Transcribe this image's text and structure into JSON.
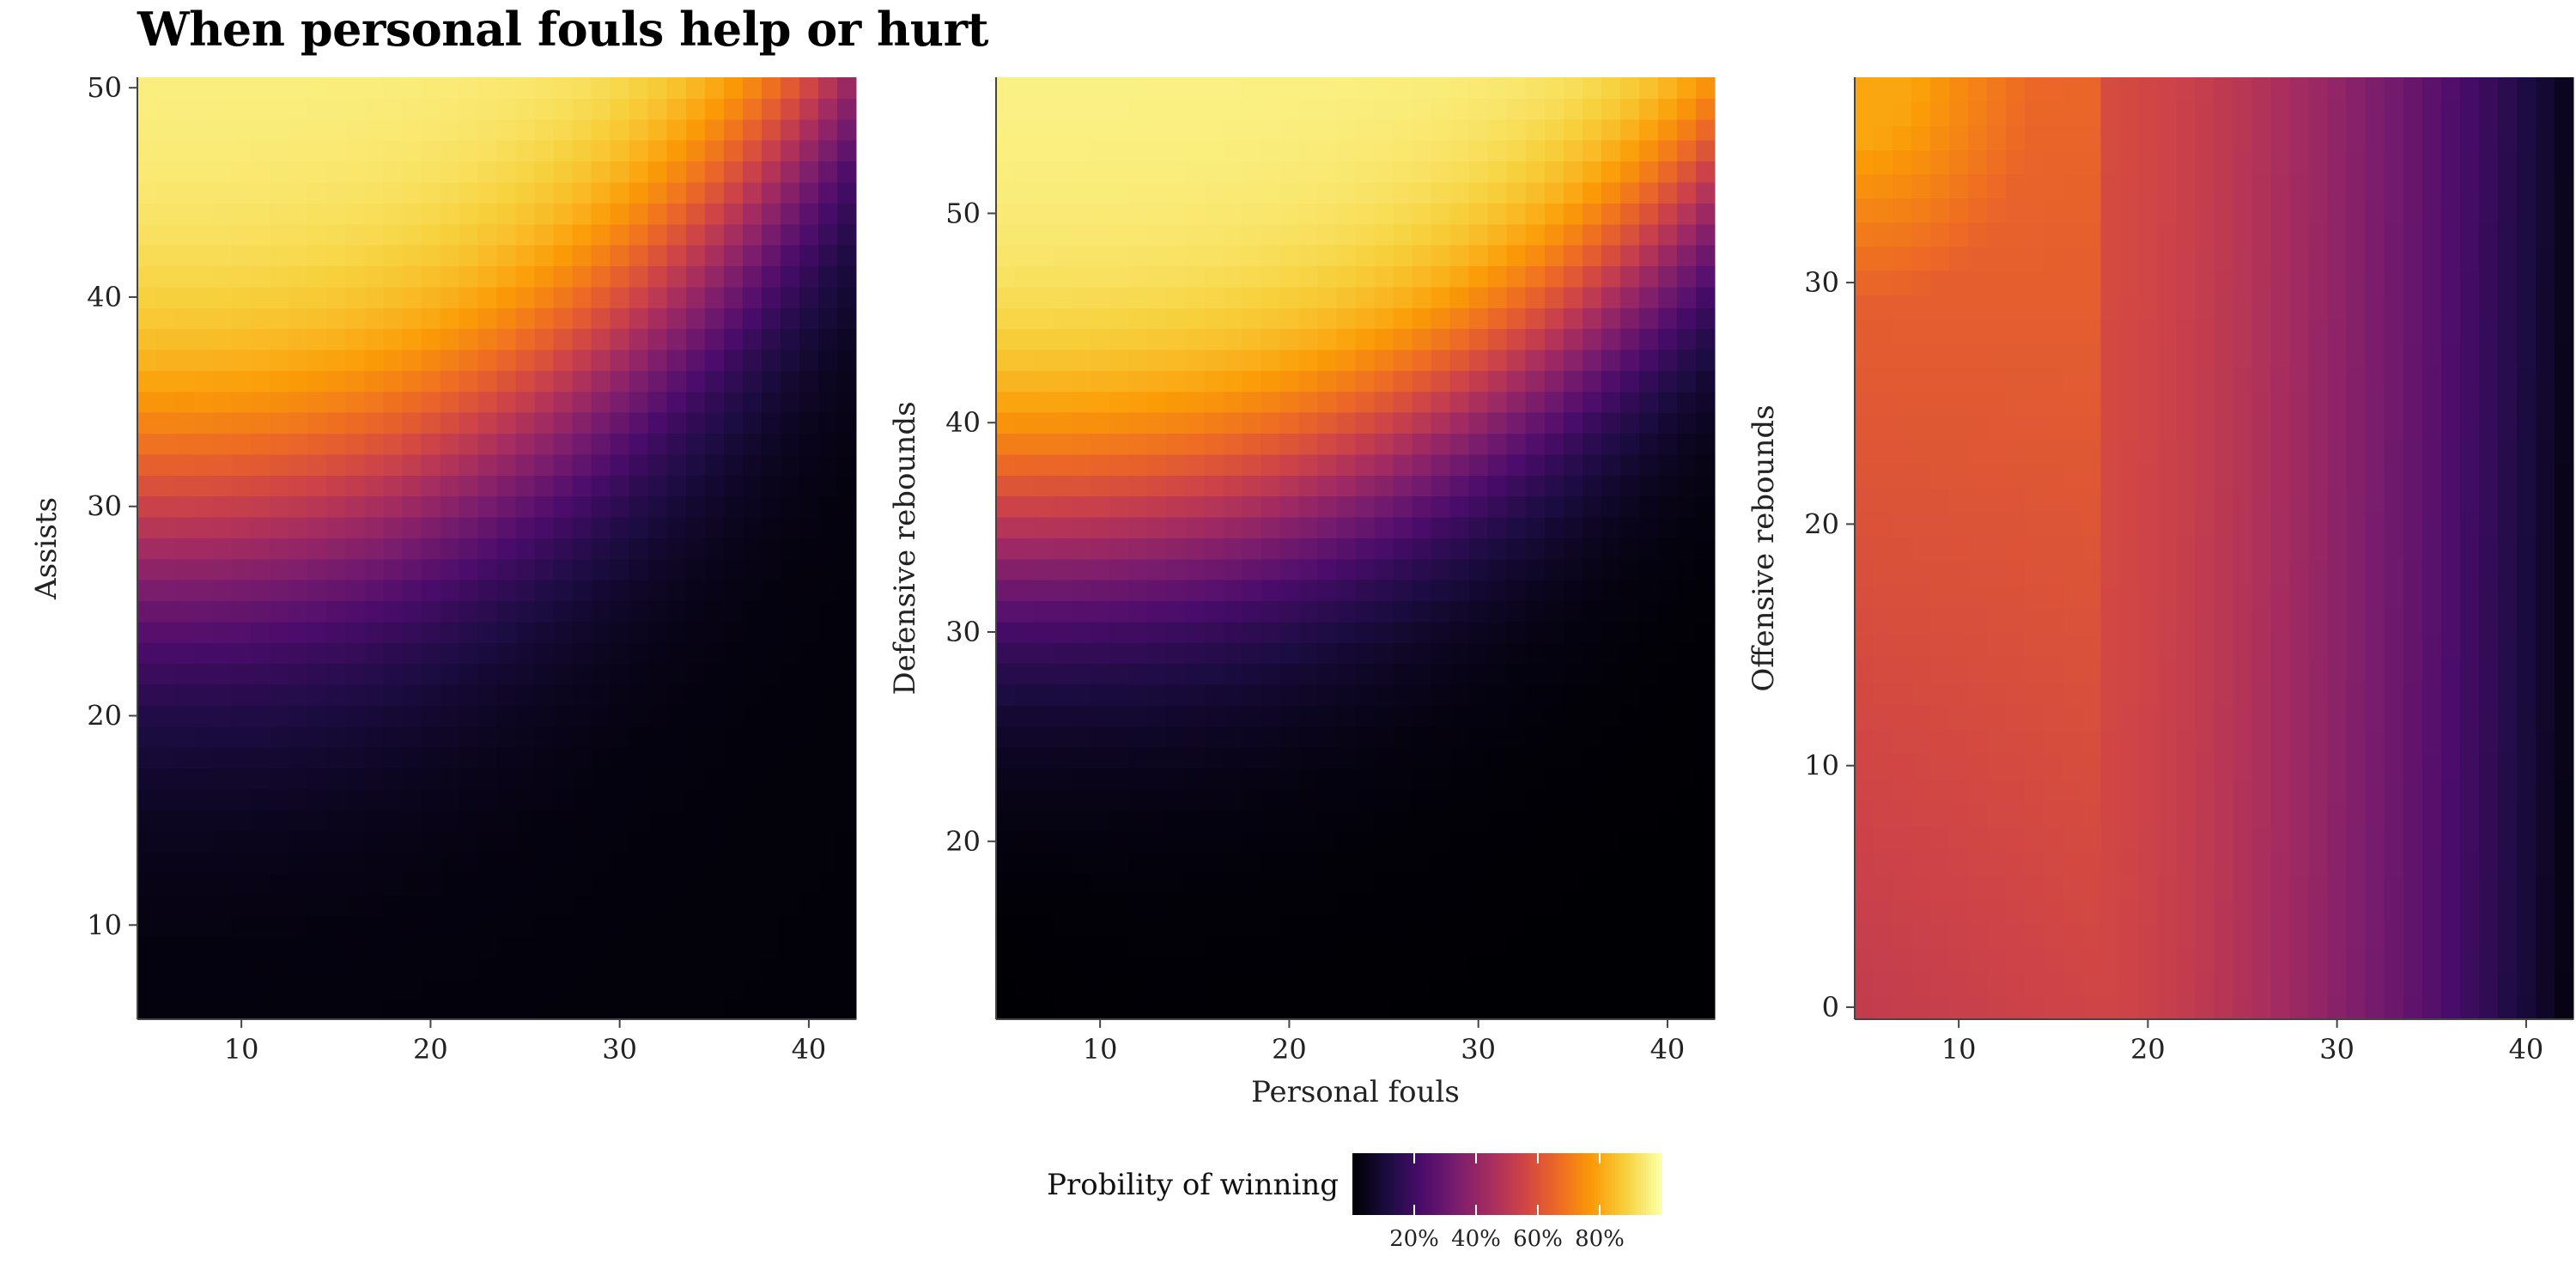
{
  "title": "When personal fouls help or hurt",
  "colorscale": {
    "name": "inferno",
    "stops": [
      "#000004",
      "#1b0c41",
      "#4a0c6b",
      "#781c6d",
      "#a52c60",
      "#cf4446",
      "#ed6925",
      "#fb9b06",
      "#f7d13d",
      "#fcffa4"
    ]
  },
  "chart_data": [
    {
      "type": "heatmap",
      "panel": "assists",
      "xlabel": "",
      "ylabel": "Assists",
      "x_range": [
        4.5,
        42.5
      ],
      "y_range": [
        5.5,
        50.5
      ],
      "x_ticks": [
        10,
        20,
        30,
        40
      ],
      "y_ticks": [
        10,
        20,
        30,
        40,
        50
      ],
      "x_step": 1,
      "y_step": 1,
      "surface": {
        "x0": 24,
        "y0": 29,
        "rx": 28,
        "ry": 14,
        "shape": 2,
        "left_shift": 0,
        "right_shift": 0,
        "x_coef": 0,
        "min": 0.01,
        "max": 0.97
      },
      "banded_y": true
    },
    {
      "type": "heatmap",
      "panel": "defensive_rebounds",
      "xlabel": "Personal fouls",
      "ylabel": "Defensive rebounds",
      "x_range": [
        4.5,
        42.5
      ],
      "y_range": [
        11.5,
        56.5
      ],
      "x_ticks": [
        10,
        20,
        30,
        40
      ],
      "y_ticks": [
        20,
        30,
        40,
        50
      ],
      "x_step": 1,
      "y_step": 1,
      "surface": {
        "x0": 24,
        "y0": 35,
        "rx": 28,
        "ry": 10,
        "shape": 2,
        "left_shift": 0,
        "right_shift": 0,
        "x_coef": 0,
        "min": 0.0,
        "max": 0.97
      },
      "banded_y": true
    },
    {
      "type": "heatmap",
      "panel": "offensive_rebounds",
      "xlabel": "",
      "ylabel": "Offensive rebounds",
      "x_range": [
        4.5,
        42.5
      ],
      "y_range": [
        -0.5,
        38.5
      ],
      "x_ticks": [
        10,
        20,
        30,
        40
      ],
      "y_ticks": [
        0,
        10,
        20,
        30
      ],
      "x_step": 1,
      "y_step": 1,
      "surface": {
        "min": 0.03,
        "max": 0.8
      },
      "banded_y": false
    }
  ],
  "legend": {
    "title": "Probility of winning",
    "ticks": [
      {
        "value": 0.2,
        "label": "20%"
      },
      {
        "value": 0.4,
        "label": "40%"
      },
      {
        "value": 0.6,
        "label": "60%"
      },
      {
        "value": 0.8,
        "label": "80%"
      }
    ],
    "range": [
      0.0,
      1.0
    ]
  }
}
